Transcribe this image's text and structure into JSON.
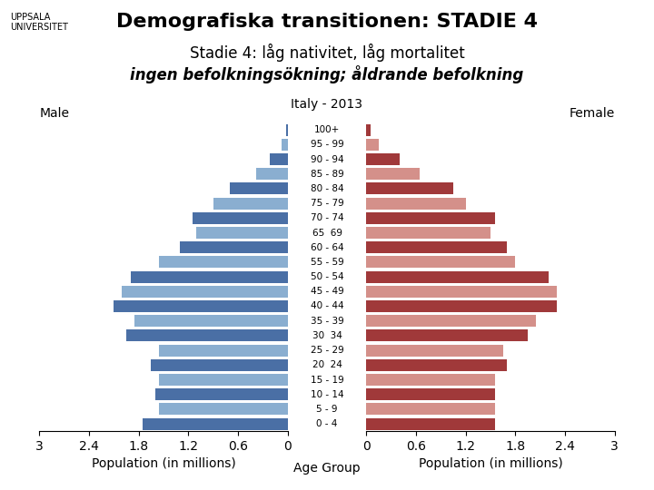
{
  "chart_data": {
    "type": "bar",
    "orientation": "horizontal",
    "title": "Demografiska transitionen: STADIE 4",
    "subtitle": [
      "Stadie 4: låg nativitet, låg mortalitet",
      "ingen befolkningsökning; åldrande befolkning"
    ],
    "annotations": [
      "Italy - 2013",
      "UPPSALA\nUNIVERSITET"
    ],
    "ylabel": "Age Group",
    "categories": [
      "0 - 4",
      "5 - 9",
      "10 - 14",
      "15 - 19",
      "20  24",
      "25 - 29",
      "30  34",
      "35 - 39",
      "40 - 44",
      "45 - 49",
      "50 - 54",
      "55 - 59",
      "60 - 64",
      "65  69",
      "70 - 74",
      "75 - 79",
      "80 - 84",
      "85 - 89",
      "90 - 94",
      "95 - 99",
      "100+"
    ],
    "series": [
      {
        "name": "Male",
        "values": [
          1.75,
          1.55,
          1.6,
          1.55,
          1.65,
          1.55,
          1.95,
          1.85,
          2.1,
          2.0,
          1.9,
          1.55,
          1.3,
          1.1,
          1.15,
          0.9,
          0.7,
          0.38,
          0.22,
          0.08,
          0.02
        ],
        "colors": [
          "#4a6fa5",
          "#8aaed0",
          "#4a6fa5",
          "#8aaed0",
          "#4a6fa5",
          "#8aaed0",
          "#4a6fa5",
          "#8aaed0",
          "#4a6fa5",
          "#8aaed0",
          "#4a6fa5",
          "#8aaed0",
          "#4a6fa5",
          "#8aaed0",
          "#4a6fa5",
          "#8aaed0",
          "#4a6fa5",
          "#8aaed0",
          "#4a6fa5",
          "#8aaed0",
          "#4a6fa5"
        ],
        "xlabel": "Population (in millions)",
        "xlim": [
          3,
          0
        ],
        "xticks": [
          3,
          2.4,
          1.8,
          1.2,
          0.6,
          0
        ]
      },
      {
        "name": "Female",
        "values": [
          1.55,
          1.55,
          1.55,
          1.55,
          1.7,
          1.65,
          1.95,
          2.05,
          2.3,
          2.3,
          2.2,
          1.8,
          1.7,
          1.5,
          1.55,
          1.2,
          1.05,
          0.65,
          0.4,
          0.15,
          0.05
        ],
        "colors": [
          "#a0393a",
          "#d4908a",
          "#a0393a",
          "#d4908a",
          "#a0393a",
          "#d4908a",
          "#a0393a",
          "#d4908a",
          "#a0393a",
          "#d4908a",
          "#a0393a",
          "#d4908a",
          "#a0393a",
          "#d4908a",
          "#a0393a",
          "#d4908a",
          "#a0393a",
          "#d4908a",
          "#a0393a",
          "#d4908a",
          "#a0393a"
        ],
        "xlabel": "Population (in millions)",
        "xlim": [
          0,
          3
        ],
        "xticks": [
          0,
          0.6,
          1.2,
          1.8,
          2.4,
          3
        ]
      }
    ]
  }
}
